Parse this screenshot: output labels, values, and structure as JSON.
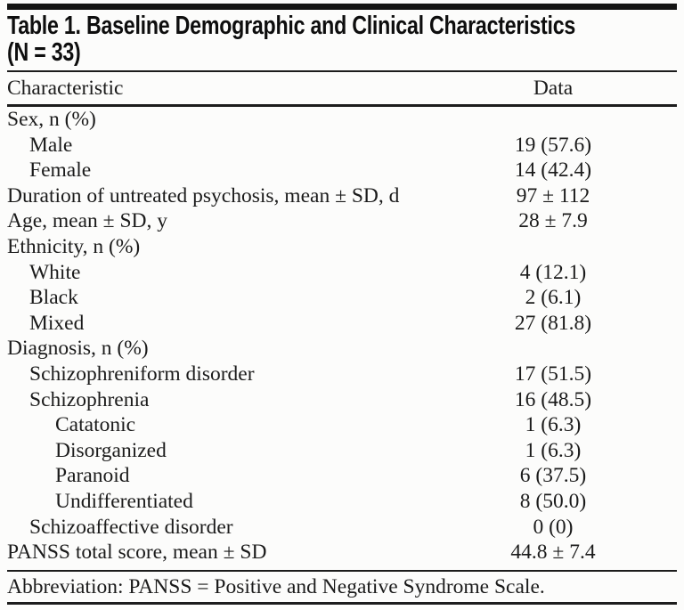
{
  "table": {
    "title_line1": "Table 1. Baseline Demographic and Clinical Characteristics",
    "title_line2": "(N = 33)",
    "columns": [
      "Characteristic",
      "Data"
    ],
    "rows": [
      {
        "label": "Sex, n (%)",
        "value": "",
        "indent": 0
      },
      {
        "label": "Male",
        "value": "19 (57.6)",
        "indent": 1
      },
      {
        "label": "Female",
        "value": "14 (42.4)",
        "indent": 1
      },
      {
        "label": "Duration of untreated psychosis, mean ± SD, d",
        "value": "97 ± 112",
        "indent": 0
      },
      {
        "label": "Age, mean ± SD, y",
        "value": "28 ± 7.9",
        "indent": 0
      },
      {
        "label": "Ethnicity, n (%)",
        "value": "",
        "indent": 0
      },
      {
        "label": "White",
        "value": "4 (12.1)",
        "indent": 1
      },
      {
        "label": "Black",
        "value": "2 (6.1)",
        "indent": 1
      },
      {
        "label": "Mixed",
        "value": "27 (81.8)",
        "indent": 1
      },
      {
        "label": "Diagnosis, n (%)",
        "value": "",
        "indent": 0
      },
      {
        "label": "Schizophreniform disorder",
        "value": "17 (51.5)",
        "indent": 1
      },
      {
        "label": "Schizophrenia",
        "value": "16 (48.5)",
        "indent": 1
      },
      {
        "label": "Catatonic",
        "value": "1 (6.3)",
        "indent": 2
      },
      {
        "label": "Disorganized",
        "value": "1 (6.3)",
        "indent": 2
      },
      {
        "label": "Paranoid",
        "value": "6 (37.5)",
        "indent": 2
      },
      {
        "label": "Undifferentiated",
        "value": "8 (50.0)",
        "indent": 2
      },
      {
        "label": "Schizoaffective disorder",
        "value": "0 (0)",
        "indent": 1
      },
      {
        "label": "PANSS total score, mean ± SD",
        "value": "44.8 ± 7.4",
        "indent": 0
      }
    ],
    "footnote": "Abbreviation: PANSS = Positive and Negative Syndrome Scale."
  },
  "colors": {
    "text": "#1b1b1b",
    "title_text": "#0e0e0e",
    "rule": "#1c1c1c",
    "background": "#fcfcfb"
  }
}
